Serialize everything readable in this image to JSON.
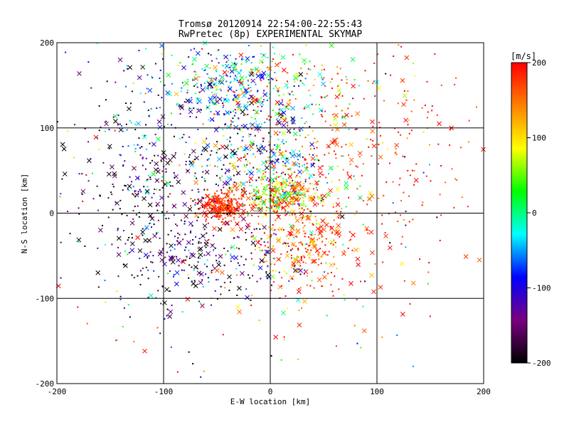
{
  "chart_data": {
    "type": "scatter",
    "title": "Tromsø 20120914 22:54:00-22:55:43",
    "subtitle": "RwPretec (8p) EXPERIMENTAL SKYMAP",
    "xlabel": "E-W location [km]",
    "ylabel": "N-S location [km]",
    "xlim": [
      -200,
      200
    ],
    "ylim": [
      -200,
      200
    ],
    "x_ticks": [
      "-200",
      "-100",
      "0",
      "100",
      "200"
    ],
    "y_ticks": [
      "-200",
      "-100",
      "0",
      "100",
      "200"
    ],
    "grid": true,
    "grid_lines": [
      -100,
      0,
      100
    ],
    "colorbar": {
      "unit": "[m/s]",
      "range": [
        -200,
        200
      ],
      "ticks": [
        "200",
        "100",
        "0",
        "-100",
        "-200"
      ],
      "colormap": [
        "#000000",
        "#7a0080",
        "#0000ff",
        "#00ffff",
        "#00ff00",
        "#ffff00",
        "#ff8000",
        "#ff0000"
      ]
    },
    "clusters": [
      {
        "cx": -45,
        "cy": 8,
        "sx": 12,
        "sy": 8,
        "n": 260,
        "v": 185,
        "vs": 25
      },
      {
        "cx": 10,
        "cy": 22,
        "sx": 18,
        "sy": 14,
        "n": 330,
        "v": 110,
        "vs": 90
      },
      {
        "cx": -40,
        "cy": 150,
        "sx": 25,
        "sy": 20,
        "n": 220,
        "v": -55,
        "vs": 45
      },
      {
        "cx": 10,
        "cy": 145,
        "sx": 45,
        "sy": 28,
        "n": 220,
        "v": 70,
        "vs": 110
      },
      {
        "cx": -5,
        "cy": 70,
        "sx": 28,
        "sy": 30,
        "n": 260,
        "v": -40,
        "vs": 90
      },
      {
        "cx": -115,
        "cy": 5,
        "sx": 38,
        "sy": 50,
        "n": 240,
        "v": -175,
        "vs": 40
      },
      {
        "cx": 75,
        "cy": 60,
        "sx": 55,
        "sy": 65,
        "n": 320,
        "v": 185,
        "vs": 25
      },
      {
        "cx": 30,
        "cy": -35,
        "sx": 25,
        "sy": 30,
        "n": 260,
        "v": 160,
        "vs": 60
      },
      {
        "cx": -60,
        "cy": -55,
        "sx": 45,
        "sy": 25,
        "n": 200,
        "v": -150,
        "vs": 70
      },
      {
        "cx": -100,
        "cy": 100,
        "sx": 55,
        "sy": 50,
        "n": 220,
        "v": -120,
        "vs": 80
      },
      {
        "cx": 0,
        "cy": 0,
        "sx": 100,
        "sy": 100,
        "n": 280,
        "v": 60,
        "vs": 150
      }
    ]
  }
}
